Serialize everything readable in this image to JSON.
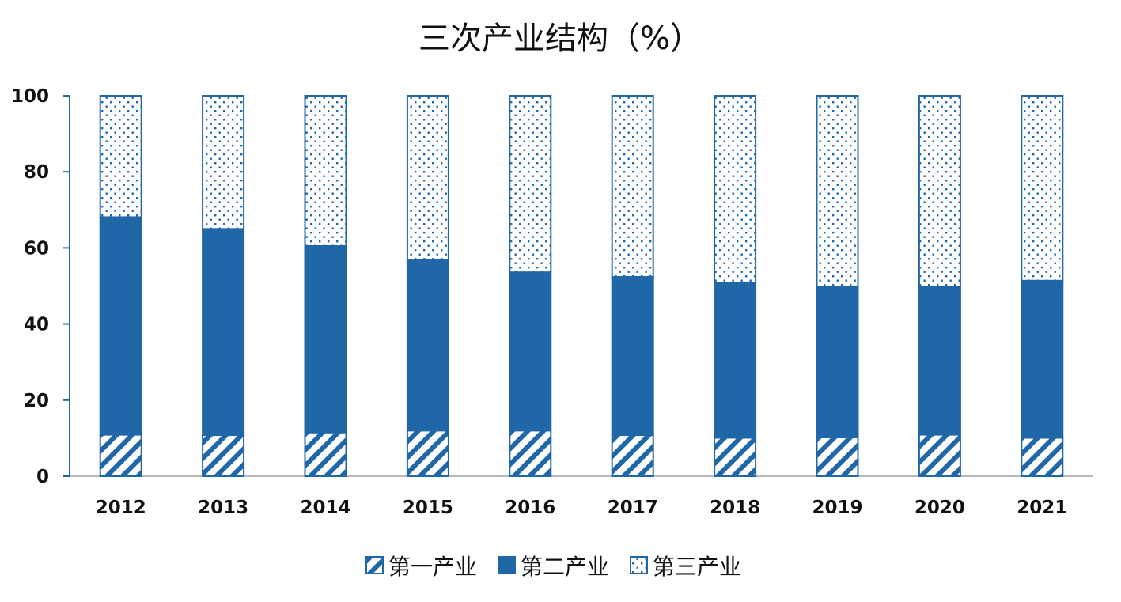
{
  "chart_data": {
    "type": "bar",
    "stacked": true,
    "title": "三次产业结构（%）",
    "xlabel": "",
    "ylabel": "",
    "ylim": [
      0,
      100
    ],
    "yticks": [
      0,
      20,
      40,
      60,
      80,
      100
    ],
    "grid": false,
    "legend_position": "bottom",
    "categories": [
      "2012",
      "2013",
      "2014",
      "2015",
      "2016",
      "2017",
      "2018",
      "2019",
      "2020",
      "2021"
    ],
    "series": [
      {
        "name": "第一产业",
        "pattern": "diagonal-hatch",
        "color": "#2067a8",
        "values": [
          10.9,
          10.8,
          11.5,
          12.0,
          12.0,
          10.8,
          10.1,
          10.2,
          10.9,
          10.1
        ]
      },
      {
        "name": "第二产业",
        "pattern": "solid",
        "color": "#2067a8",
        "values": [
          57.2,
          54.2,
          49.0,
          44.8,
          41.6,
          41.6,
          40.7,
          39.6,
          38.9,
          41.3
        ]
      },
      {
        "name": "第三产业",
        "pattern": "dots",
        "color": "#2067a8",
        "values": [
          31.9,
          35.0,
          39.5,
          43.2,
          46.4,
          47.6,
          49.2,
          50.2,
          50.2,
          48.6
        ]
      }
    ]
  }
}
